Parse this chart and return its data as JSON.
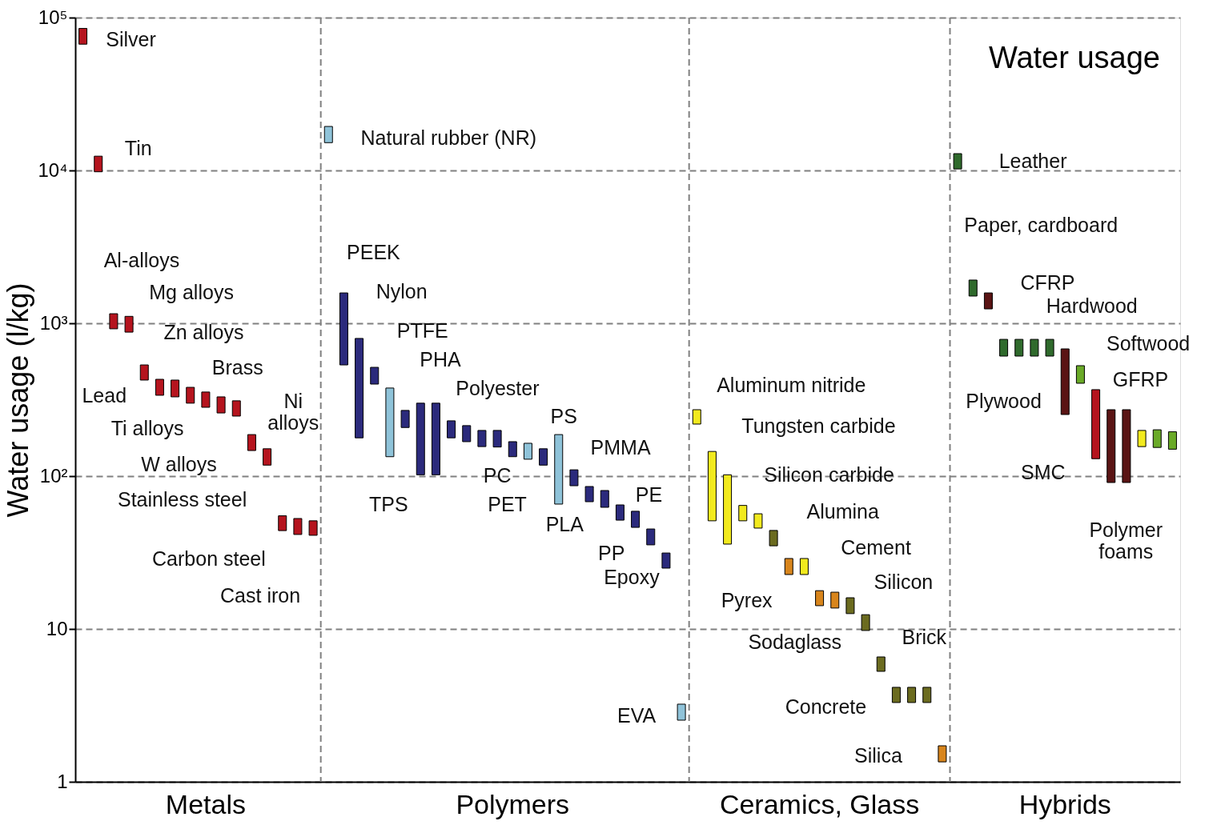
{
  "chart_data": {
    "type": "bar",
    "title": "Water usage",
    "ylabel": "Water usage (l/kg)",
    "log": "y",
    "grid": "y",
    "ylim": [
      1,
      100000
    ],
    "yticks": [
      1,
      10,
      {
        "value": 100,
        "label": "10²"
      },
      {
        "value": 1000,
        "label": "10³"
      },
      {
        "value": 10000,
        "label": "10⁴"
      },
      {
        "value": 100000,
        "label": "10⁵"
      }
    ],
    "categories": [
      null,
      null,
      null,
      null,
      null,
      null,
      null,
      null,
      "Metals",
      null,
      null,
      null,
      null,
      null,
      null,
      null,
      null,
      null,
      null,
      null,
      null,
      null,
      null,
      null,
      null,
      null,
      null,
      null,
      "Polymers",
      null,
      null,
      null,
      null,
      null,
      null,
      null,
      null,
      null,
      null,
      null,
      null,
      null,
      null,
      null,
      null,
      null,
      null,
      null,
      "Ceramics, Glass",
      null,
      null,
      null,
      null,
      null,
      null,
      null,
      null,
      null,
      null,
      null,
      null,
      null,
      null,
      null,
      "Hybrids",
      null,
      null,
      null,
      null,
      null,
      null,
      null
    ],
    "base": [
      67000,
      9800,
      920,
      875,
      425,
      338,
      330,
      300,
      282,
      259,
      247,
      147,
      118,
      44,
      41.5,
      41,
      15200,
      534,
      178,
      400,
      134,
      208,
      102,
      102,
      178,
      168,
      156,
      155,
      134,
      129,
      118,
      65.6,
      86.5,
      68,
      62.5,
      51.5,
      46.2,
      35.5,
      25,
      2.53,
      219,
      51,
      35.9,
      51,
      45.7,
      35,
      22.7,
      22.7,
      14.2,
      13.7,
      12.6,
      9.77,
      5.28,
      3.3,
      3.3,
      3.3,
      1.35,
      10230,
      1507,
      1242,
      610,
      610,
      610,
      610,
      253,
      405,
      130,
      90.8,
      90.8,
      156,
      154,
      150
    ],
    "values": [
      18000,
      2600,
      235,
      235,
      109,
      92,
      95,
      81,
      73,
      71,
      64,
      40,
      33,
      11,
      11.3,
      10,
      4200,
      1046,
      618,
      115,
      243,
      61,
      198,
      198,
      52,
      46,
      43,
      44,
      34,
      35,
      33,
      121.4,
      23.5,
      17.5,
      18,
      13.3,
      12.7,
      9.6,
      6.4,
      0.69,
      53,
      94,
      66.1,
      13.3,
      11,
      9.1,
      6.2,
      6.2,
      3.6,
      3.7,
      3.4,
      2.63,
      1.28,
      0.85,
      0.85,
      0.85,
      0.37,
      2650,
      411,
      338,
      175,
      175,
      175,
      175,
      427,
      123,
      238,
      181.2,
      181.2,
      43,
      47,
      45
    ],
    "colors": [
      "#b5141e",
      "#b5141e",
      "#b5141e",
      "#b5141e",
      "#b5141e",
      "#b5141e",
      "#b5141e",
      "#b5141e",
      "#b5141e",
      "#b5141e",
      "#b5141e",
      "#b5141e",
      "#b5141e",
      "#b5141e",
      "#b5141e",
      "#b5141e",
      "#8fc3d9",
      "#2b2a7c",
      "#2b2a7c",
      "#2b2a7c",
      "#8fc3d9",
      "#2b2a7c",
      "#2b2a7c",
      "#2b2a7c",
      "#2b2a7c",
      "#2b2a7c",
      "#2b2a7c",
      "#2b2a7c",
      "#2b2a7c",
      "#8fc3d9",
      "#2b2a7c",
      "#8fc3d9",
      "#2b2a7c",
      "#2b2a7c",
      "#2b2a7c",
      "#2b2a7c",
      "#2b2a7c",
      "#2b2a7c",
      "#2b2a7c",
      "#8fc3d9",
      "#f2ea1e",
      "#f2ea1e",
      "#f2ea1e",
      "#f2ea1e",
      "#f2ea1e",
      "#6b6b1f",
      "#d8851c",
      "#f2ea1e",
      "#d8851c",
      "#d8851c",
      "#6b6b1f",
      "#6b6b1f",
      "#6b6b1f",
      "#6b6b1f",
      "#6b6b1f",
      "#6b6b1f",
      "#d8851c",
      "#2f6a2c",
      "#2f6a2c",
      "#5a1414",
      "#2f6a2c",
      "#2f6a2c",
      "#2f6a2c",
      "#2f6a2c",
      "#5a1414",
      "#6aaa28",
      "#b5141e",
      "#5a1414",
      "#5a1414",
      "#f2ea1e",
      "#6aaa28",
      "#6aaa28"
    ],
    "annotations": [
      "Silver",
      "Tin",
      "Al-alloys",
      "Mg alloys",
      "Lead",
      "Zn alloys",
      "Brass",
      "Ti alloys",
      "Ni\nalloys",
      "W alloys",
      "Stainless steel",
      "Carbon steel",
      "Cast iron",
      "Natural rubber (NR)",
      "PEEK",
      "Nylon",
      "PTFE",
      "PHA",
      "TPS",
      "Polyester",
      "PC",
      "PS",
      "PET",
      "PMMA",
      "PLA",
      "PE",
      "PP",
      "Epoxy",
      "EVA",
      "Aluminum nitride",
      "Tungsten carbide",
      "Silicon carbide",
      "Alumina",
      "Cement",
      "Silicon",
      "Pyrex",
      "Sodaglass",
      "Brick",
      "Concrete",
      "Silica",
      "Leather",
      "Paper, cardboard",
      "CFRP",
      "Plywood",
      "Hardwood",
      "Softwood",
      "SMC",
      "Polymer\nfoams",
      "GFRP"
    ]
  }
}
